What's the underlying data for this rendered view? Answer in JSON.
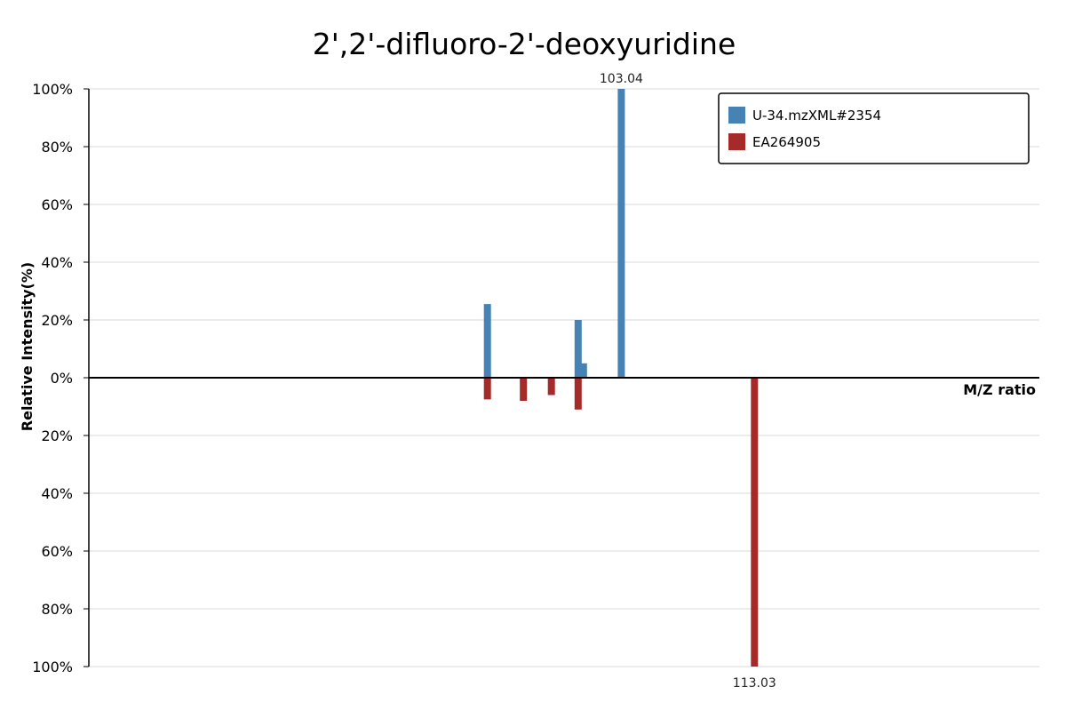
{
  "chart_data": {
    "type": "bar",
    "title": "2',2'-difluoro-2'-deoxyuridine",
    "xlabel": "M/Z ratio",
    "ylabel": "Relative Intensity(%)",
    "y_tick_labels_top": [
      "100%",
      "80%",
      "60%",
      "40%",
      "20%",
      "0%"
    ],
    "y_tick_labels_bottom": [
      "20%",
      "40%",
      "60%",
      "80%",
      "100%"
    ],
    "grid": true,
    "legend_position": "top-right",
    "series": [
      {
        "name": "U-34.mzXML#2354",
        "color": "#4682b4",
        "direction": "up",
        "peaks": [
          {
            "x": 93.0,
            "y": 25.5
          },
          {
            "x": 99.8,
            "y": 20.0
          },
          {
            "x": 100.2,
            "y": 5.0
          },
          {
            "x": 103.04,
            "y": 100,
            "label": "103.04"
          }
        ]
      },
      {
        "name": "EA264905",
        "color": "#a52a2a",
        "direction": "down",
        "peaks": [
          {
            "x": 93.0,
            "y": 7.5
          },
          {
            "x": 95.7,
            "y": 8.0
          },
          {
            "x": 97.8,
            "y": 6.0
          },
          {
            "x": 99.8,
            "y": 11.0
          },
          {
            "x": 113.03,
            "y": 100,
            "label": "113.03"
          }
        ]
      }
    ]
  }
}
